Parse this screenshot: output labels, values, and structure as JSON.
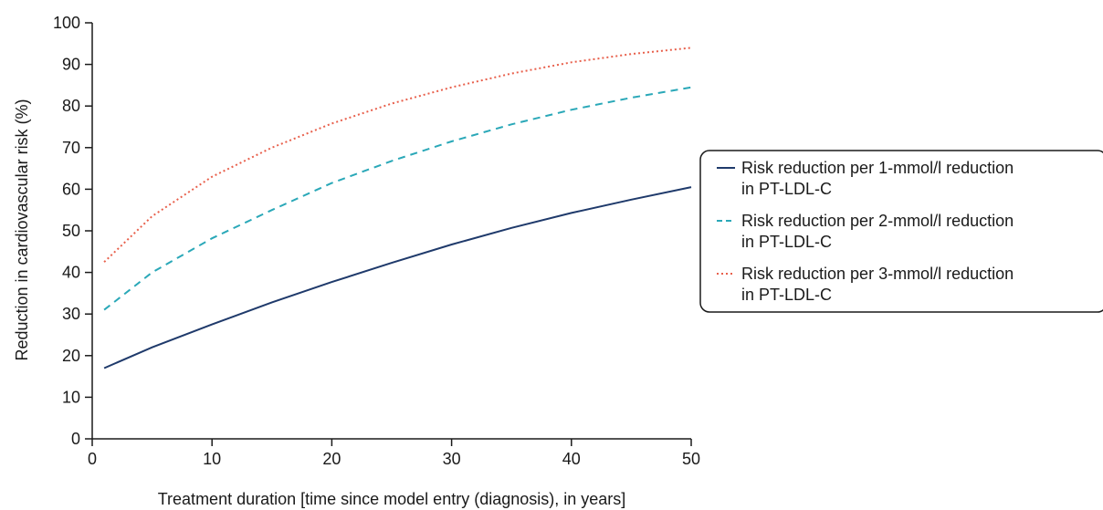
{
  "chart_data": {
    "type": "line",
    "title": "",
    "xlabel": "Treatment duration [time since model entry (diagnosis), in years]",
    "ylabel": "Reduction in cardiovascular risk (%)",
    "xlim": [
      0,
      50
    ],
    "ylim": [
      0,
      100
    ],
    "x_ticks": [
      0,
      10,
      20,
      30,
      40,
      50
    ],
    "y_ticks": [
      0,
      10,
      20,
      30,
      40,
      50,
      60,
      70,
      80,
      90,
      100
    ],
    "grid": false,
    "legend_position": "right",
    "series": [
      {
        "name_lines": [
          "Risk reduction per 1-mmol/l reduction",
          "in PT-LDL-C"
        ],
        "color": "#1f3a6b",
        "dash": "solid",
        "x": [
          1,
          5,
          10,
          15,
          20,
          25,
          30,
          35,
          40,
          45,
          50
        ],
        "y": [
          17.0,
          22.0,
          27.5,
          32.8,
          37.7,
          42.3,
          46.7,
          50.7,
          54.3,
          57.5,
          60.5
        ]
      },
      {
        "name_lines": [
          "Risk reduction per 2-mmol/l reduction",
          "in PT-LDL-C"
        ],
        "color": "#2aa8b8",
        "dash": "dashed",
        "x": [
          1,
          5,
          10,
          15,
          20,
          25,
          30,
          35,
          40,
          45,
          50
        ],
        "y": [
          31.0,
          40.0,
          48.2,
          55.0,
          61.5,
          66.8,
          71.5,
          75.6,
          79.1,
          82.0,
          84.5
        ]
      },
      {
        "name_lines": [
          "Risk reduction per 3-mmol/l reduction",
          "in PT-LDL-C"
        ],
        "color": "#e8604c",
        "dash": "dotted",
        "x": [
          1,
          5,
          10,
          15,
          20,
          25,
          30,
          35,
          40,
          45,
          50
        ],
        "y": [
          42.5,
          53.5,
          63.0,
          70.0,
          75.8,
          80.6,
          84.5,
          87.8,
          90.5,
          92.5,
          94.0
        ]
      }
    ]
  }
}
